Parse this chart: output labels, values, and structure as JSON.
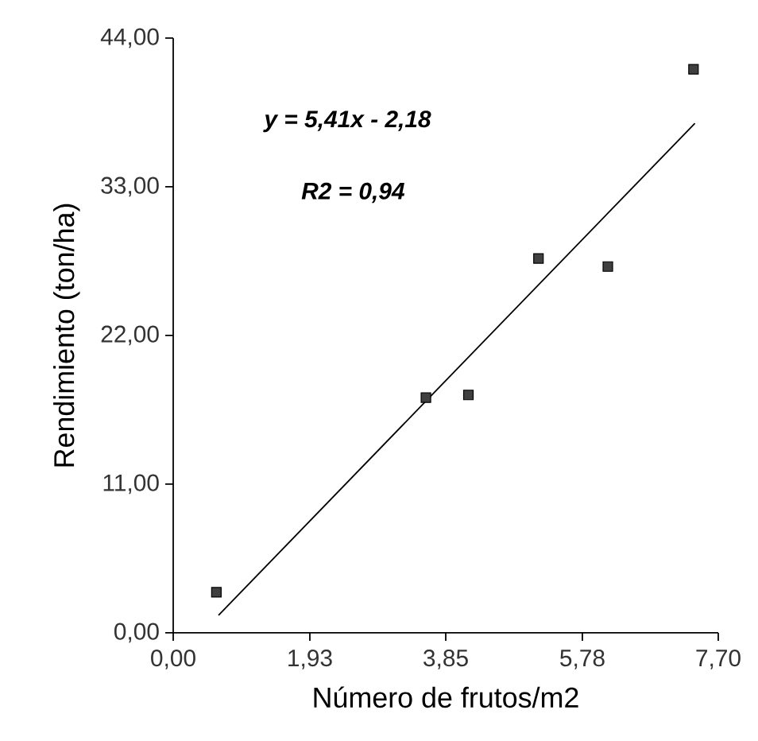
{
  "chart_data": {
    "type": "scatter",
    "xlabel": "Número de frutos/m2",
    "ylabel": "Rendimiento (ton/ha)",
    "xlim": [
      0,
      7.7
    ],
    "ylim": [
      0,
      44
    ],
    "xticks": [
      {
        "value": 0,
        "label": "0,00"
      },
      {
        "value": 1.93,
        "label": "1,93"
      },
      {
        "value": 3.85,
        "label": "3,85"
      },
      {
        "value": 5.78,
        "label": "5,78"
      },
      {
        "value": 7.7,
        "label": "7,70"
      }
    ],
    "yticks": [
      {
        "value": 0,
        "label": "0,00"
      },
      {
        "value": 11,
        "label": "11,00"
      },
      {
        "value": 22,
        "label": "22,00"
      },
      {
        "value": 33,
        "label": "33,00"
      },
      {
        "value": 44,
        "label": "44,00"
      }
    ],
    "grid": false,
    "series": [
      {
        "color": "#404040",
        "marker": "square",
        "x": [
          0.61,
          3.57,
          4.17,
          5.16,
          6.14,
          7.35
        ],
        "values": [
          3.0,
          17.4,
          17.6,
          27.7,
          27.1,
          41.7
        ]
      },
      {
        "type": "line",
        "color": "#000000",
        "marker": "none",
        "x": [
          0.64,
          7.37
        ],
        "values": [
          1.3,
          37.7
        ]
      }
    ],
    "annotations": [
      "y = 5,41x - 2,18",
      "R2 = 0,94"
    ]
  }
}
